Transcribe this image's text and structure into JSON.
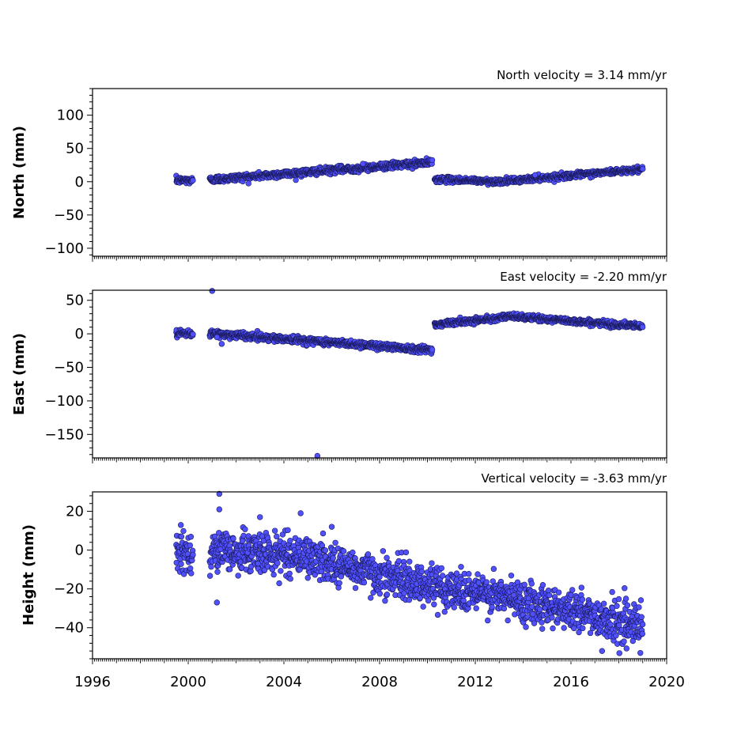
{
  "chart_data": [
    {
      "type": "scatter",
      "title": "North velocity = 3.14 mm/yr",
      "ylabel": "North (mm)",
      "ylim": [
        -112,
        140
      ],
      "yticks": [
        -100,
        -50,
        0,
        50,
        100
      ],
      "xlim": [
        1996,
        2020
      ],
      "xticks": [
        1996,
        2000,
        2004,
        2008,
        2012,
        2016,
        2020
      ],
      "show_xtick_labels": false,
      "segments": [
        {
          "x_start": 1999.5,
          "x_end": 2000.2,
          "y_start": 2,
          "y_end": 2,
          "spread": 2.5
        },
        {
          "x_start": 2000.9,
          "x_end": 2010.2,
          "y_start": 3,
          "y_end": 29,
          "spread": 2.5
        },
        {
          "x_start": 2010.3,
          "x_end": 2013.0,
          "y_start": 4,
          "y_end": 0,
          "spread": 2.0
        },
        {
          "x_start": 2013.0,
          "x_end": 2019.0,
          "y_start": 0,
          "y_end": 19,
          "spread": 2.0
        }
      ],
      "outliers": [
        [
          2014.5,
          10
        ],
        [
          2007.3,
          27
        ]
      ]
    },
    {
      "type": "scatter",
      "title": "East velocity = -2.20 mm/yr",
      "ylabel": "East (mm)",
      "ylim": [
        -185,
        65
      ],
      "yticks": [
        -150,
        -100,
        -50,
        0,
        50
      ],
      "xlim": [
        1996,
        2020
      ],
      "xticks": [
        1996,
        2000,
        2004,
        2008,
        2012,
        2016,
        2020
      ],
      "show_xtick_labels": false,
      "segments": [
        {
          "x_start": 1999.5,
          "x_end": 2000.2,
          "y_start": 0,
          "y_end": 0,
          "spread": 2.5
        },
        {
          "x_start": 2000.9,
          "x_end": 2010.2,
          "y_start": 1,
          "y_end": -24,
          "spread": 2.5
        },
        {
          "x_start": 2010.3,
          "x_end": 2013.5,
          "y_start": 14,
          "y_end": 26,
          "spread": 2.0
        },
        {
          "x_start": 2013.5,
          "x_end": 2019.0,
          "y_start": 26,
          "y_end": 11,
          "spread": 2.0
        }
      ],
      "outliers": [
        [
          2001.0,
          64
        ],
        [
          2001.4,
          -15
        ],
        [
          2005.4,
          -182
        ],
        [
          2001.2,
          -5
        ]
      ]
    },
    {
      "type": "scatter",
      "title": "Vertical velocity = -3.63 mm/yr",
      "ylabel": "Height (mm)",
      "ylim": [
        -56,
        30
      ],
      "yticks": [
        -40,
        -20,
        0,
        20
      ],
      "xlim": [
        1996,
        2020
      ],
      "xticks": [
        1996,
        2000,
        2004,
        2008,
        2012,
        2016,
        2020
      ],
      "show_xtick_labels": true,
      "segments": [
        {
          "x_start": 1999.5,
          "x_end": 2000.2,
          "y_start": -2,
          "y_end": -2,
          "spread": 6
        },
        {
          "x_start": 2000.9,
          "x_end": 2005.0,
          "y_start": 0,
          "y_end": -3,
          "spread": 5
        },
        {
          "x_start": 2005.0,
          "x_end": 2010.0,
          "y_start": -4,
          "y_end": -18,
          "spread": 5
        },
        {
          "x_start": 2010.0,
          "x_end": 2015.0,
          "y_start": -18,
          "y_end": -28,
          "spread": 5
        },
        {
          "x_start": 2015.0,
          "x_end": 2019.0,
          "y_start": -28,
          "y_end": -40,
          "spread": 5
        }
      ],
      "outliers": [
        [
          2001.3,
          29
        ],
        [
          2001.3,
          21
        ],
        [
          2001.2,
          -27
        ],
        [
          2003.0,
          17
        ],
        [
          2004.7,
          19
        ],
        [
          2006.0,
          12
        ],
        [
          2018.9,
          -53
        ],
        [
          2017.3,
          -52
        ],
        [
          2018.3,
          -25
        ]
      ]
    }
  ]
}
